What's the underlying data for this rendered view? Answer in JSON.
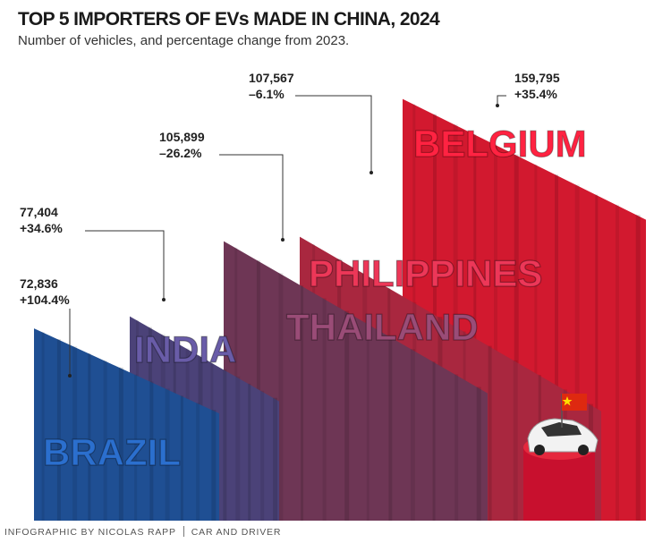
{
  "title": "TOP 5 IMPORTERS OF EVs MADE IN CHINA, 2024",
  "subtitle": "Number of vehicles, and percentage change from 2023.",
  "footer": {
    "credit": "INFOGRAPHIC BY NICOLAS RAPP",
    "source": "CAR AND DRIVER"
  },
  "chart_data": {
    "type": "bar",
    "title": "TOP 5 IMPORTERS OF EVs MADE IN CHINA, 2024",
    "subtitle": "Number of vehicles, and percentage change from 2023.",
    "categories": [
      "BRAZIL",
      "INDIA",
      "THAILAND",
      "PHILIPPINES",
      "BELGIUM"
    ],
    "values": [
      72836,
      77404,
      105899,
      107567,
      159795
    ],
    "value_labels": [
      "72,836",
      "77,404",
      "105,899",
      "107,567",
      "159,795"
    ],
    "change_labels": [
      "+104.4%",
      "+34.6%",
      "–26.2%",
      "–6.1%",
      "+35.4%"
    ],
    "colors": [
      "#1f4f93",
      "#4b4278",
      "#6e3655",
      "#a9273f",
      "#d2192f"
    ],
    "grid": false,
    "legend": "none"
  },
  "icons": {
    "car": "car-icon",
    "flag": "china-flag-icon"
  }
}
